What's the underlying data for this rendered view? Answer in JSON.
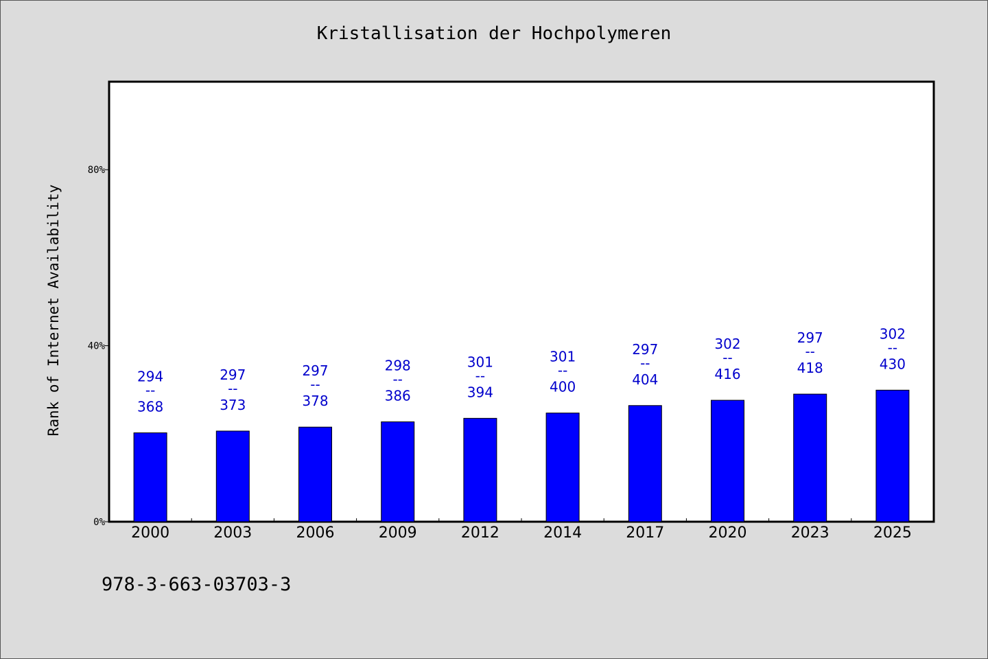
{
  "chart_data": {
    "type": "bar",
    "title": "Kristallisation der Hochpolymeren",
    "xlabel": "",
    "ylabel": "Rank of Internet Availability",
    "ylim": [
      0,
      100
    ],
    "yticks": [
      "0%",
      "40%",
      "80%"
    ],
    "ytick_values": [
      0,
      40,
      80
    ],
    "categories": [
      "2000",
      "2003",
      "2006",
      "2009",
      "2012",
      "2014",
      "2017",
      "2020",
      "2023",
      "2025"
    ],
    "values": [
      20.2,
      20.6,
      21.5,
      22.7,
      23.5,
      24.7,
      26.4,
      27.6,
      29.0,
      29.9
    ],
    "data_labels": [
      {
        "top": "294",
        "sep": "--",
        "bottom": "368"
      },
      {
        "top": "297",
        "sep": "--",
        "bottom": "373"
      },
      {
        "top": "297",
        "sep": "--",
        "bottom": "378"
      },
      {
        "top": "298",
        "sep": "--",
        "bottom": "386"
      },
      {
        "top": "301",
        "sep": "--",
        "bottom": "394"
      },
      {
        "top": "301",
        "sep": "--",
        "bottom": "400"
      },
      {
        "top": "297",
        "sep": "--",
        "bottom": "404"
      },
      {
        "top": "302",
        "sep": "--",
        "bottom": "416"
      },
      {
        "top": "297",
        "sep": "--",
        "bottom": "418"
      },
      {
        "top": "302",
        "sep": "--",
        "bottom": "430"
      }
    ],
    "grid": false,
    "bar_color": "#0000ff",
    "label_color": "#0000cc",
    "background": "#dcdcdc",
    "plot_background": "#ffffff"
  },
  "footer": {
    "code": "978-3-663-03703-3"
  }
}
